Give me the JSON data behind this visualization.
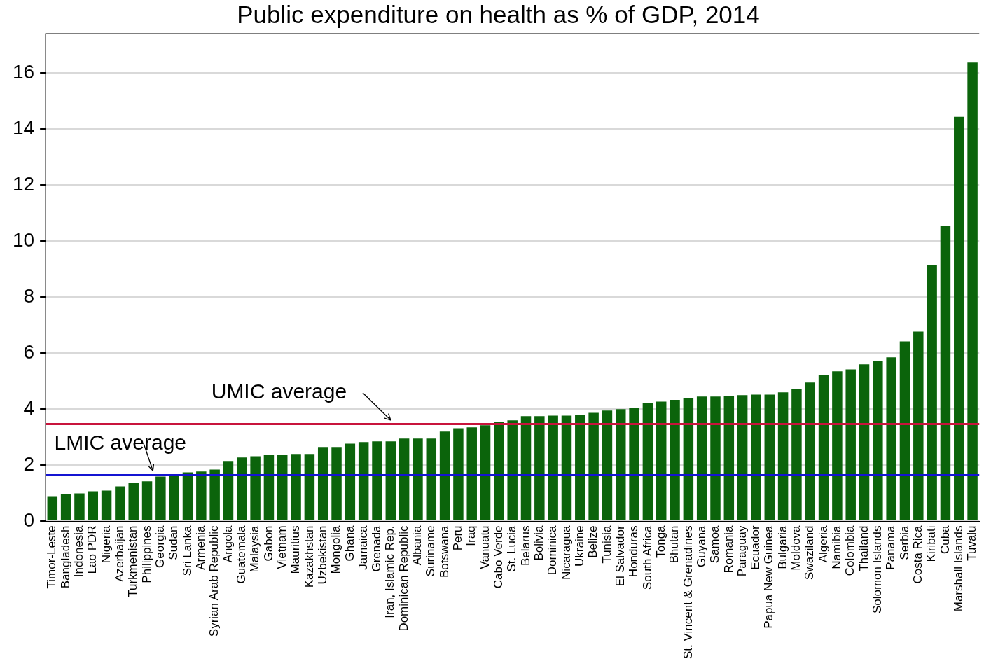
{
  "chart_data": {
    "type": "bar",
    "title": "Public expenditure on health as % of GDP, 2014",
    "categories": [
      "Timor-Leste",
      "Bangladesh",
      "Indonesia",
      "Lao PDR",
      "Nigeria",
      "Azerbaijan",
      "Turkmenistan",
      "Philippines",
      "Georgia",
      "Sudan",
      "Sri Lanka",
      "Armenia",
      "Syrian Arab Republic",
      "Angola",
      "Guatemala",
      "Malaysia",
      "Gabon",
      "Vietnam",
      "Mauritius",
      "Kazakhstan",
      "Uzbekistan",
      "Mongolia",
      "Ghana",
      "Jamaica",
      "Grenada",
      "Iran, Islamic Rep.",
      "Dominican Republic",
      "Albania",
      "Suriname",
      "Botswana",
      "Peru",
      "Iraq",
      "Vanuatu",
      "Cabo Verde",
      "St. Lucia",
      "Belarus",
      "Bolivia",
      "Dominica",
      "Nicaragua",
      "Ukraine",
      "Belize",
      "Tunisia",
      "El Salvador",
      "Honduras",
      "South Africa",
      "Tonga",
      "Bhutan",
      "St. Vincent & Grenadines",
      "Guyana",
      "Samoa",
      "Romania",
      "Paraguay",
      "Ecuador",
      "Papua New Guinea",
      "Bulgaria",
      "Moldova",
      "Swaziland",
      "Algeria",
      "Namibia",
      "Colombia",
      "Thailand",
      "Solomon Islands",
      "Panama",
      "Serbia",
      "Costa Rica",
      "Kiribati",
      "Cuba",
      "Marshall Islands",
      "Tuvalu"
    ],
    "values": [
      0.9,
      0.97,
      1.0,
      1.07,
      1.1,
      1.25,
      1.37,
      1.43,
      1.6,
      1.65,
      1.75,
      1.78,
      1.85,
      2.15,
      2.28,
      2.32,
      2.37,
      2.37,
      2.4,
      2.4,
      2.65,
      2.65,
      2.77,
      2.83,
      2.85,
      2.85,
      2.95,
      2.95,
      2.95,
      3.2,
      3.32,
      3.35,
      3.43,
      3.55,
      3.6,
      3.75,
      3.75,
      3.77,
      3.77,
      3.8,
      3.87,
      3.95,
      4.0,
      4.05,
      4.23,
      4.27,
      4.33,
      4.4,
      4.45,
      4.45,
      4.48,
      4.5,
      4.52,
      4.52,
      4.6,
      4.72,
      4.95,
      5.23,
      5.35,
      5.42,
      5.6,
      5.72,
      5.85,
      6.42,
      6.77,
      9.13,
      10.53,
      14.43,
      16.37
    ],
    "color": "#0b640b",
    "ylim": [
      0,
      17.4
    ],
    "yticks": [
      0,
      2,
      4,
      6,
      8,
      10,
      12,
      14,
      16
    ],
    "grid": "y",
    "legend": false,
    "ref_lines": [
      {
        "axis": "y",
        "value": 3.47,
        "label": "UMIC average",
        "color": "#c8143c"
      },
      {
        "axis": "y",
        "value": 1.65,
        "label": "LMIC average",
        "color": "#1414d2"
      }
    ]
  }
}
